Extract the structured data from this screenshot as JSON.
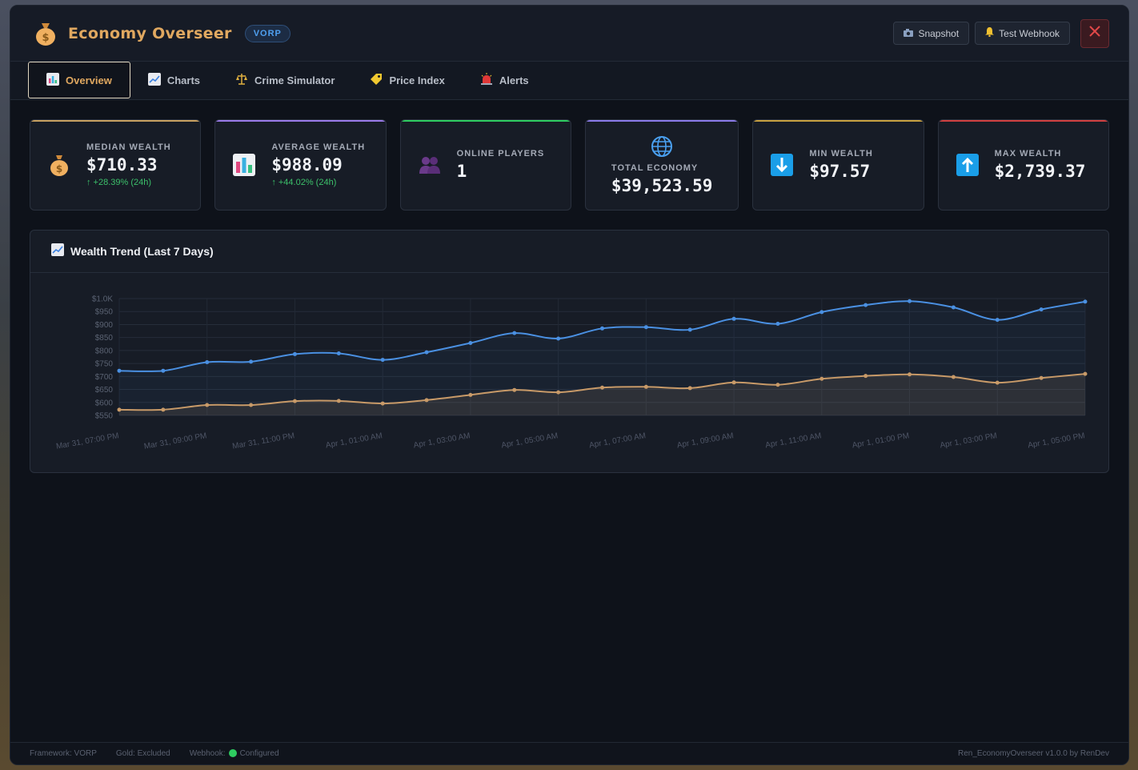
{
  "app": {
    "title": "Economy Overseer",
    "badge": "VORP"
  },
  "header": {
    "snapshot_label": "Snapshot",
    "webhook_label": "Test Webhook",
    "accent_color": "#e0a860"
  },
  "tabs": [
    {
      "label": "Overview",
      "icon": "bar-chart-icon",
      "active": true
    },
    {
      "label": "Charts",
      "icon": "trend-chart-icon",
      "active": false
    },
    {
      "label": "Crime Simulator",
      "icon": "scales-icon",
      "active": false
    },
    {
      "label": "Price Index",
      "icon": "price-tag-icon",
      "active": false
    },
    {
      "label": "Alerts",
      "icon": "siren-icon",
      "active": false
    }
  ],
  "stats": {
    "median": {
      "label": "MEDIAN WEALTH",
      "value": "$710.33",
      "change": "↑ +28.39% (24h)",
      "icon": "money-bag-icon",
      "accent": "#c8a060"
    },
    "average": {
      "label": "AVERAGE WEALTH",
      "value": "$988.09",
      "change": "↑ +44.02% (24h)",
      "icon": "bar-chart-icon",
      "accent": "#9a7ae8"
    },
    "online": {
      "label": "ONLINE PLAYERS",
      "value": "1",
      "icon": "people-icon",
      "accent": "#2ecc60"
    },
    "total": {
      "label": "TOTAL ECONOMY",
      "value": "$39,523.59",
      "icon": "globe-icon",
      "accent": "#8a7ae8"
    },
    "min": {
      "label": "MIN WEALTH",
      "value": "$97.57",
      "icon": "down-arrow-icon",
      "accent": "#c8a040"
    },
    "max": {
      "label": "MAX WEALTH",
      "value": "$2,739.37",
      "icon": "up-arrow-icon",
      "accent": "#d04040"
    }
  },
  "chart_panel": {
    "title": "Wealth Trend (Last 7 Days)"
  },
  "chart_data": {
    "type": "line",
    "x": [
      "Mar 31, 07:00 PM",
      "Mar 31, 08:00 PM",
      "Mar 31, 09:00 PM",
      "Mar 31, 10:00 PM",
      "Mar 31, 11:00 PM",
      "Apr 1, 12:00 AM",
      "Apr 1, 01:00 AM",
      "Apr 1, 02:00 AM",
      "Apr 1, 03:00 AM",
      "Apr 1, 04:00 AM",
      "Apr 1, 05:00 AM",
      "Apr 1, 06:00 AM",
      "Apr 1, 07:00 AM",
      "Apr 1, 08:00 AM",
      "Apr 1, 09:00 AM",
      "Apr 1, 10:00 AM",
      "Apr 1, 11:00 AM",
      "Apr 1, 12:00 PM",
      "Apr 1, 01:00 PM",
      "Apr 1, 02:00 PM",
      "Apr 1, 03:00 PM",
      "Apr 1, 04:00 PM",
      "Apr 1, 05:00 PM"
    ],
    "x_tick_labels": [
      "Mar 31, 07:00 PM",
      "Mar 31, 09:00 PM",
      "Mar 31, 11:00 PM",
      "Apr 1, 01:00 AM",
      "Apr 1, 03:00 AM",
      "Apr 1, 05:00 AM",
      "Apr 1, 07:00 AM",
      "Apr 1, 09:00 AM",
      "Apr 1, 11:00 AM",
      "Apr 1, 01:00 PM",
      "Apr 1, 03:00 PM",
      "Apr 1, 05:00 PM"
    ],
    "y_tick_labels": [
      "$1.0K",
      "$950",
      "$900",
      "$850",
      "$800",
      "$750",
      "$700",
      "$650",
      "$600",
      "$550"
    ],
    "ylim": [
      550,
      1000
    ],
    "series": [
      {
        "color": "#4a90e2",
        "values": [
          722,
          722,
          755,
          757,
          786,
          789,
          764,
          793,
          829,
          867,
          846,
          885,
          890,
          880,
          922,
          903,
          948,
          975,
          990,
          966,
          918,
          958,
          988
        ]
      },
      {
        "color": "#c89a68",
        "values": [
          572,
          572,
          590,
          590,
          605,
          606,
          596,
          609,
          629,
          648,
          639,
          657,
          660,
          655,
          677,
          668,
          691,
          702,
          708,
          698,
          676,
          694,
          710
        ]
      }
    ],
    "grid": true
  },
  "footer": {
    "framework": "Framework: VORP",
    "gold": "Gold: Excluded",
    "webhook_label": "Webhook:",
    "webhook_status": "Configured",
    "version": "Ren_EconomyOverseer v1.0.0 by RenDev"
  }
}
